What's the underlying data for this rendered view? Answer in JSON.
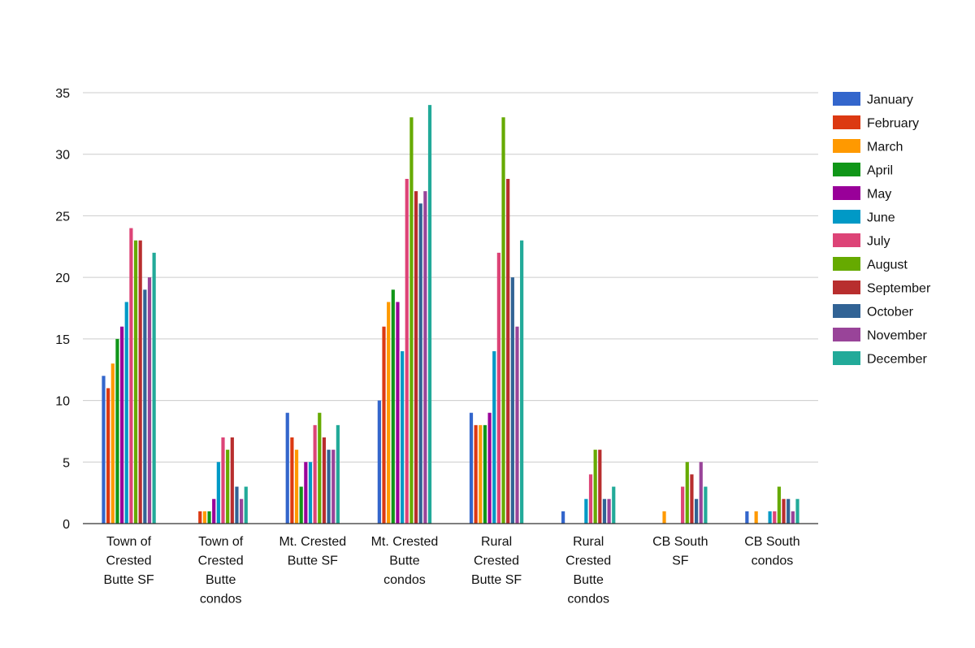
{
  "chart_data": {
    "type": "bar",
    "title": "",
    "xlabel": "",
    "ylabel": "",
    "ylim": [
      0,
      35
    ],
    "yticks": [
      0,
      5,
      10,
      15,
      20,
      25,
      30,
      35
    ],
    "grid": true,
    "legend_position": "right",
    "categories": [
      "Town of Crested Butte SF",
      "Town of Crested Butte condos",
      "Mt. Crested Butte SF",
      "Mt. Crested Butte condos",
      "Rural Crested Butte SF",
      "Rural Crested Butte condos",
      "CB South SF",
      "CB South condos"
    ],
    "category_label_lines": [
      [
        "Town of",
        "Crested",
        "Butte SF"
      ],
      [
        "Town of",
        "Crested",
        "Butte",
        "condos"
      ],
      [
        "Mt. Crested",
        "Butte SF"
      ],
      [
        "Mt. Crested",
        "Butte",
        "condos"
      ],
      [
        "Rural",
        "Crested",
        "Butte SF"
      ],
      [
        "Rural",
        "Crested",
        "Butte",
        "condos"
      ],
      [
        "CB South",
        "SF"
      ],
      [
        "CB South",
        "condos"
      ]
    ],
    "series": [
      {
        "name": "January",
        "color": "#3366cc",
        "values": [
          12,
          0,
          9,
          10,
          9,
          1,
          0,
          1
        ]
      },
      {
        "name": "February",
        "color": "#dc3912",
        "values": [
          11,
          1,
          7,
          16,
          8,
          0,
          0,
          0
        ]
      },
      {
        "name": "March",
        "color": "#ff9900",
        "values": [
          13,
          1,
          6,
          18,
          8,
          0,
          1,
          1
        ]
      },
      {
        "name": "April",
        "color": "#109618",
        "values": [
          15,
          1,
          3,
          19,
          8,
          0,
          0,
          0
        ]
      },
      {
        "name": "May",
        "color": "#990099",
        "values": [
          16,
          2,
          5,
          18,
          9,
          0,
          0,
          0
        ]
      },
      {
        "name": "June",
        "color": "#0099c6",
        "values": [
          18,
          5,
          5,
          14,
          14,
          2,
          0,
          1
        ]
      },
      {
        "name": "July",
        "color": "#dd4477",
        "values": [
          24,
          7,
          8,
          28,
          22,
          4,
          3,
          1
        ]
      },
      {
        "name": "August",
        "color": "#66aa00",
        "values": [
          23,
          6,
          9,
          33,
          33,
          6,
          5,
          3
        ]
      },
      {
        "name": "September",
        "color": "#b82e2e",
        "values": [
          23,
          7,
          7,
          27,
          28,
          6,
          4,
          2
        ]
      },
      {
        "name": "October",
        "color": "#316395",
        "values": [
          19,
          3,
          6,
          26,
          20,
          2,
          2,
          2
        ]
      },
      {
        "name": "November",
        "color": "#994499",
        "values": [
          20,
          2,
          6,
          27,
          16,
          2,
          5,
          1
        ]
      },
      {
        "name": "December",
        "color": "#22aa99",
        "values": [
          22,
          3,
          8,
          34,
          23,
          3,
          3,
          2
        ]
      }
    ]
  }
}
